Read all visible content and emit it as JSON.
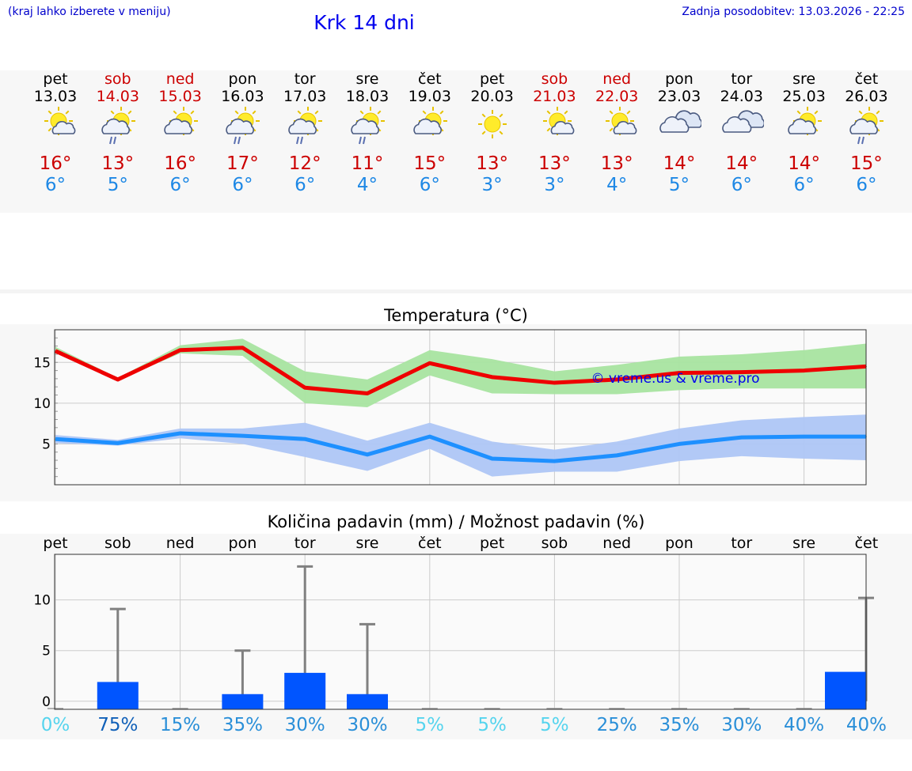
{
  "header": {
    "hint": "(kraj lahko izberete v meniju)",
    "title": "Krk 14 dni",
    "updated": "Zadnja posodobitev: 13.03.2026 - 22:25"
  },
  "days": [
    {
      "name": "pet",
      "date": "13.03",
      "weekend": false,
      "icon": "sun-partly-cloudy-icon",
      "tmax": "16°",
      "tmin": "6°"
    },
    {
      "name": "sob",
      "date": "14.03",
      "weekend": true,
      "icon": "sun-cloud-rain-icon",
      "tmax": "13°",
      "tmin": "5°"
    },
    {
      "name": "ned",
      "date": "15.03",
      "weekend": true,
      "icon": "sun-cloud-icon",
      "tmax": "16°",
      "tmin": "6°"
    },
    {
      "name": "pon",
      "date": "16.03",
      "weekend": false,
      "icon": "sun-cloud-rain-icon",
      "tmax": "17°",
      "tmin": "6°"
    },
    {
      "name": "tor",
      "date": "17.03",
      "weekend": false,
      "icon": "sun-cloud-rain-icon",
      "tmax": "12°",
      "tmin": "6°"
    },
    {
      "name": "sre",
      "date": "18.03",
      "weekend": false,
      "icon": "sun-cloud-rain-icon",
      "tmax": "11°",
      "tmin": "4°"
    },
    {
      "name": "čet",
      "date": "19.03",
      "weekend": false,
      "icon": "sun-cloud-icon",
      "tmax": "15°",
      "tmin": "6°"
    },
    {
      "name": "pet",
      "date": "20.03",
      "weekend": false,
      "icon": "sun-icon",
      "tmax": "13°",
      "tmin": "3°"
    },
    {
      "name": "sob",
      "date": "21.03",
      "weekend": true,
      "icon": "sun-partly-cloudy-icon",
      "tmax": "13°",
      "tmin": "3°"
    },
    {
      "name": "ned",
      "date": "22.03",
      "weekend": true,
      "icon": "sun-partly-cloudy-icon",
      "tmax": "13°",
      "tmin": "4°"
    },
    {
      "name": "pon",
      "date": "23.03",
      "weekend": false,
      "icon": "cloudy-icon",
      "tmax": "14°",
      "tmin": "5°"
    },
    {
      "name": "tor",
      "date": "24.03",
      "weekend": false,
      "icon": "cloudy-icon",
      "tmax": "14°",
      "tmin": "6°"
    },
    {
      "name": "sre",
      "date": "25.03",
      "weekend": false,
      "icon": "sun-cloud-icon",
      "tmax": "14°",
      "tmin": "6°"
    },
    {
      "name": "čet",
      "date": "26.03",
      "weekend": false,
      "icon": "sun-cloud-rain-icon",
      "tmax": "15°",
      "tmin": "6°"
    }
  ],
  "colors": {
    "max_line": "#ee0000",
    "max_band": "#a8e4a0",
    "min_line": "#1e90ff",
    "min_band": "#aec6f5",
    "bar": "#0055ff",
    "whisker": "#808080"
  },
  "chart_data": [
    {
      "type": "line",
      "title": "Temperatura (°C)",
      "watermark": "© vreme.us & vreme.pro",
      "x": [
        0,
        1,
        2,
        3,
        4,
        5,
        6,
        7,
        8,
        9,
        10,
        11,
        12,
        13
      ],
      "ylim": [
        0,
        19
      ],
      "yticks": [
        5,
        10,
        15
      ],
      "series": [
        {
          "name": "max",
          "values": [
            16.4,
            12.9,
            16.5,
            16.8,
            11.9,
            11.2,
            14.9,
            13.2,
            12.5,
            12.9,
            13.7,
            13.8,
            14.0,
            14.5
          ],
          "band_low": [
            16.2,
            12.8,
            16.1,
            15.8,
            10.0,
            9.5,
            13.4,
            11.2,
            11.1,
            11.1,
            11.6,
            11.8,
            11.8,
            11.8
          ],
          "band_high": [
            16.9,
            13.1,
            17.1,
            17.9,
            13.9,
            12.9,
            16.5,
            15.4,
            13.9,
            14.7,
            15.7,
            16.0,
            16.5,
            17.3
          ]
        },
        {
          "name": "min",
          "values": [
            5.6,
            5.1,
            6.3,
            6.0,
            5.6,
            3.7,
            5.9,
            3.2,
            2.9,
            3.6,
            5.0,
            5.8,
            5.9,
            5.9
          ],
          "band_low": [
            5.1,
            4.8,
            5.7,
            5.0,
            3.4,
            1.7,
            4.4,
            1.0,
            1.6,
            1.6,
            2.9,
            3.5,
            3.2,
            3.0
          ],
          "band_high": [
            6.1,
            5.5,
            6.9,
            6.9,
            7.6,
            5.4,
            7.6,
            5.3,
            4.3,
            5.3,
            6.9,
            7.9,
            8.3,
            8.6
          ]
        }
      ]
    },
    {
      "type": "bar",
      "title": "Količina padavin (mm) / Možnost padavin (%)",
      "categories": [
        "pet",
        "sob",
        "ned",
        "pon",
        "tor",
        "sre",
        "čet",
        "pet",
        "sob",
        "ned",
        "pon",
        "tor",
        "sre",
        "čet"
      ],
      "values": [
        0,
        1.9,
        0,
        0.7,
        2.8,
        0.7,
        0,
        0,
        0,
        0,
        0,
        0,
        0,
        2.9
      ],
      "upper": [
        0,
        9.1,
        0,
        5.0,
        13.3,
        7.6,
        0,
        0,
        0,
        0,
        0,
        0,
        0,
        10.2
      ],
      "ylim": [
        -0.8,
        14.5
      ],
      "yticks": [
        0,
        5,
        10
      ],
      "ytick_labels": [
        "0",
        "5",
        "10"
      ],
      "chance": [
        "0%",
        "75%",
        "15%",
        "35%",
        "30%",
        "30%",
        "5%",
        "5%",
        "5%",
        "25%",
        "35%",
        "30%",
        "40%",
        "40%"
      ],
      "chance_colors": [
        "#55d4ee",
        "#1060b8",
        "#2a8fd8",
        "#2a8fd8",
        "#2a8fd8",
        "#2a8fd8",
        "#55d4ee",
        "#55d4ee",
        "#55d4ee",
        "#2a8fd8",
        "#2a8fd8",
        "#2a8fd8",
        "#2a8fd8",
        "#2a8fd8"
      ]
    }
  ]
}
